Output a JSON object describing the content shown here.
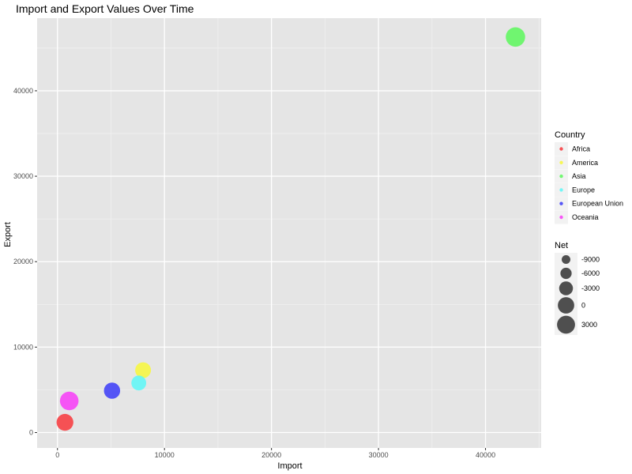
{
  "chart_data": {
    "type": "scatter",
    "title": "Import and Export Values Over Time",
    "xlabel": "Import",
    "ylabel": "Export",
    "xlim": [
      -1900,
      45200
    ],
    "ylim": [
      -1800,
      48500
    ],
    "xticks": [
      0,
      10000,
      20000,
      30000,
      40000
    ],
    "xtick_labels": [
      "0",
      "10000",
      "20000",
      "30000",
      "40000"
    ],
    "yticks": [
      0,
      10000,
      20000,
      30000,
      40000
    ],
    "ytick_labels": [
      "0",
      "10000",
      "20000",
      "30000",
      "40000"
    ],
    "grid": true,
    "legend_position": "right",
    "color_legend": {
      "title": "Country",
      "entries": [
        {
          "name": "Africa",
          "color": "#F8373B"
        },
        {
          "name": "America",
          "color": "#F8F83B"
        },
        {
          "name": "Asia",
          "color": "#5CF85C"
        },
        {
          "name": "Europe",
          "color": "#5CF8F8"
        },
        {
          "name": "European Union",
          "color": "#3B3BF8"
        },
        {
          "name": "Oceania",
          "color": "#F83BF8"
        }
      ]
    },
    "size_legend": {
      "title": "Net",
      "entries": [
        {
          "label": "-9000",
          "value": -9000
        },
        {
          "label": "-6000",
          "value": -6000
        },
        {
          "label": "-3000",
          "value": -3000
        },
        {
          "label": "0",
          "value": 0
        },
        {
          "label": "3000",
          "value": 3000
        }
      ]
    },
    "points": [
      {
        "country": "Africa",
        "x": 700,
        "y": 1200,
        "net": 500
      },
      {
        "country": "America",
        "x": 8000,
        "y": 7300,
        "net": -700
      },
      {
        "country": "Asia",
        "x": 42800,
        "y": 46300,
        "net": 3500
      },
      {
        "country": "Europe",
        "x": 7600,
        "y": 5800,
        "net": -1800
      },
      {
        "country": "European Union",
        "x": 5100,
        "y": 4900,
        "net": -200
      },
      {
        "country": "Oceania",
        "x": 1100,
        "y": 3700,
        "net": 2600
      }
    ]
  }
}
